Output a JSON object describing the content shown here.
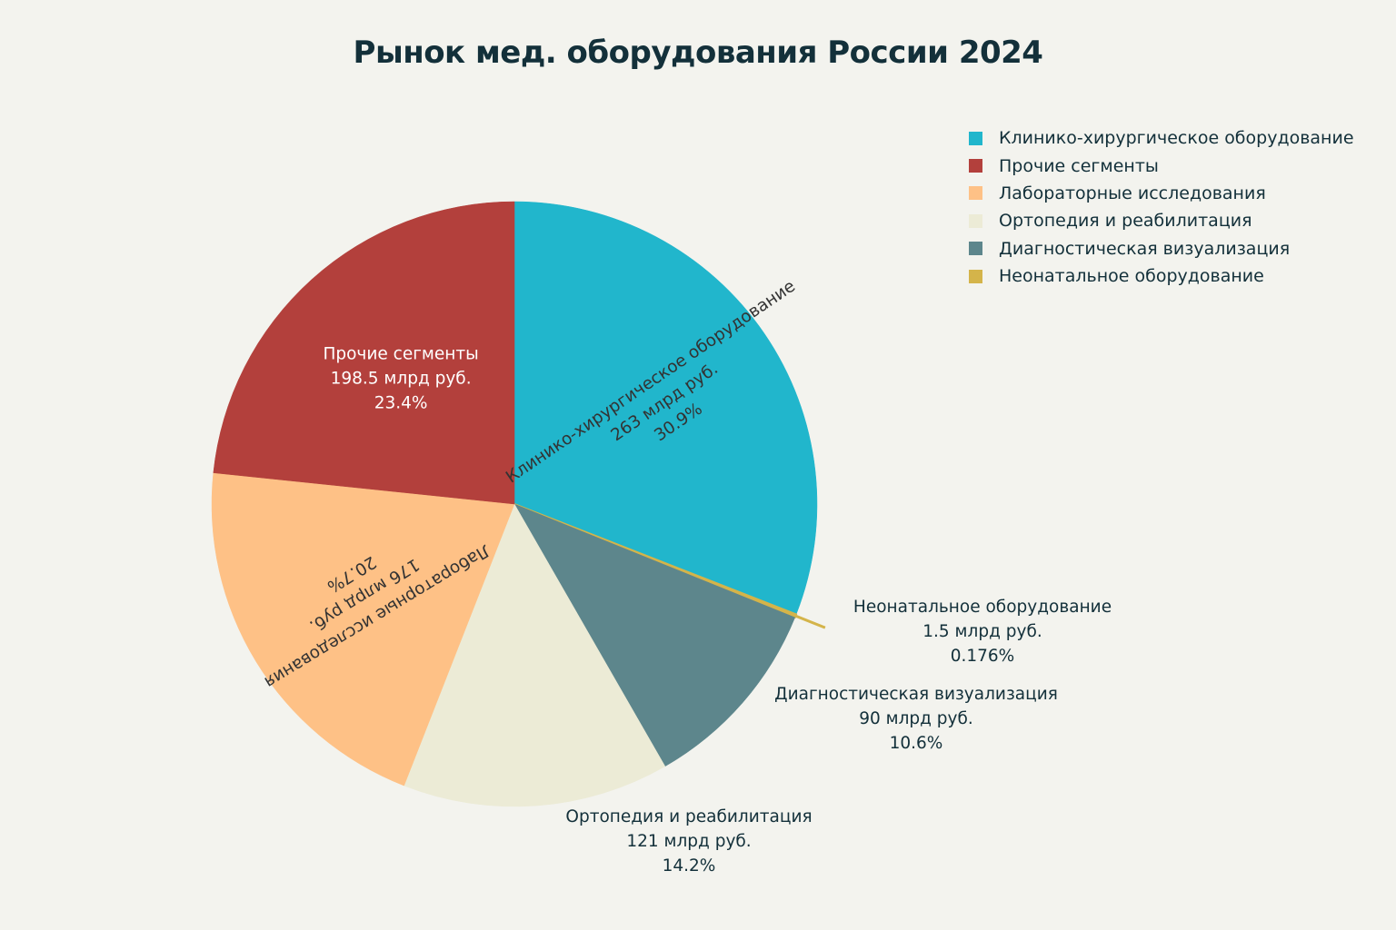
{
  "chart_data": {
    "type": "pie",
    "title": "Рынок мед. оборудования России 2024",
    "legend_position": "top-right",
    "slices": [
      {
        "label": "Клинико-хирургическое оборудование",
        "value": 263,
        "value_label": "263 млрд руб.",
        "percent_label": "30.9%",
        "color": "#21b6cc",
        "text_color": "#333333"
      },
      {
        "label": "Неонатальное оборудование",
        "value": 1.5,
        "value_label": "1.5 млрд руб.",
        "percent_label": "0.176%",
        "color": "#d4b44a",
        "text_color": "#13303a"
      },
      {
        "label": "Диагностическая визуализация",
        "value": 90,
        "value_label": "90 млрд руб.",
        "percent_label": "10.6%",
        "color": "#5d868c",
        "text_color": "#13303a"
      },
      {
        "label": "Ортопедия и реабилитация",
        "value": 121,
        "value_label": "121 млрд руб.",
        "percent_label": "14.2%",
        "color": "#ecebd6",
        "text_color": "#13303a"
      },
      {
        "label": "Лабораторные исследования",
        "value": 176,
        "value_label": "176 млрд руб.",
        "percent_label": "20.7%",
        "color": "#fec186",
        "text_color": "#333333"
      },
      {
        "label": "Прочие сегменты",
        "value": 198.5,
        "value_label": "198.5 млрд руб.",
        "percent_label": "23.4%",
        "color": "#b3403c",
        "text_color": "#ffffff"
      }
    ],
    "legend": [
      {
        "label": "Клинико-хирургическое оборудование",
        "color": "#21b6cc"
      },
      {
        "label": "Прочие сегменты",
        "color": "#b3403c"
      },
      {
        "label": "Лабораторные исследования",
        "color": "#fec186"
      },
      {
        "label": "Ортопедия и реабилитация",
        "color": "#ecebd6"
      },
      {
        "label": "Диагностическая визуализация",
        "color": "#5d868c"
      },
      {
        "label": "Неонатальное оборудование",
        "color": "#d4b44a"
      }
    ]
  }
}
